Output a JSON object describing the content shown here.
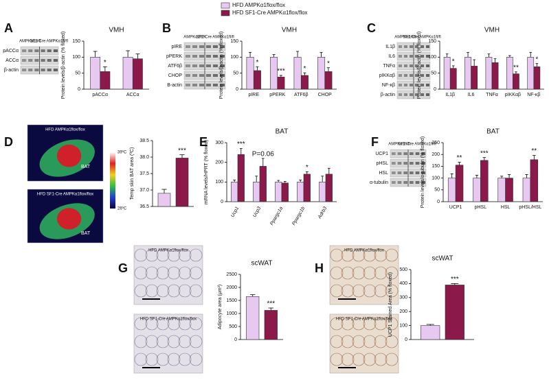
{
  "legend": [
    {
      "name": "HFD AMPKα1flox/flox",
      "color": "#e6c8f0"
    },
    {
      "name": "HFD SF1-Cre AMPKα1flox/flox",
      "color": "#8b1a4a"
    }
  ],
  "panels": [
    {
      "letter": "A",
      "blot": {
        "header": [
          "AMPKα1fl/fl",
          "SF1-Cre AMPKα1fl/fl"
        ],
        "rows": [
          "pACCα",
          "ACCα",
          "β-actin"
        ]
      }
    },
    {
      "letter": "B",
      "blot": {
        "header": [
          "AMPKα1fl/fl",
          "SF1-Cre AMPKα1fl/fl"
        ],
        "rows": [
          "pIRE",
          "pPERK",
          "ATF6β",
          "CHOP",
          "B-actin"
        ]
      }
    },
    {
      "letter": "C",
      "blot": {
        "header": [
          "AMPKα1fl/fl",
          "SF1-Cre AMPKα1fl/fl"
        ],
        "rows": [
          "IL1β",
          "IL6",
          "TNFα",
          "pIKKαβ",
          "NF-κβ",
          "β-actin"
        ]
      }
    },
    {
      "letter": "D",
      "images": [
        "HFD AMPKα1flox/flox",
        "HFD SF1-Cre AMPKα1flox/flox"
      ],
      "marks": [
        "BAT",
        "BAT"
      ],
      "scale": [
        "39ºC",
        "26ºC"
      ]
    },
    {
      "letter": "E"
    },
    {
      "letter": "F",
      "blot": {
        "header": [
          "AMPKα1fl/fl",
          "SF1-Cre AMPKα1fl/fl"
        ],
        "rows": [
          "UCP1",
          "pHSL",
          "HSL",
          "α-tubulin"
        ]
      }
    },
    {
      "letter": "G",
      "images": [
        "HFD AMPKα1flox/flox",
        "HFD SF1-Cre AMPKα1flox/flox"
      ]
    },
    {
      "letter": "H",
      "images": [
        "HFD AMPKα1flox/flox",
        "HFD SF1-Cre AMPKα1flox/flox"
      ]
    }
  ],
  "chart_data": [
    {
      "type": "bar",
      "title": "VMH",
      "ylabel": "Protein levels/β-actin (% floxed)",
      "categories": [
        "pACCα",
        "ACCα"
      ],
      "ylim": [
        0,
        150
      ],
      "yticks": [
        0,
        50,
        100,
        150
      ],
      "series": [
        {
          "color": "#e6c8f0",
          "values": [
            100,
            100
          ],
          "errors": [
            18,
            20
          ]
        },
        {
          "color": "#8b1a4a",
          "values": [
            55,
            95
          ],
          "errors": [
            15,
            15
          ]
        }
      ],
      "annotations": [
        "*",
        null
      ]
    },
    {
      "type": "bar",
      "title": "VMH",
      "ylabel": "Protein levels/β-actin (% floxed)",
      "categories": [
        "pIRE",
        "pPERK",
        "ATF6β",
        "CHOP"
      ],
      "ylim": [
        0,
        150
      ],
      "yticks": [
        0,
        50,
        100,
        150
      ],
      "series": [
        {
          "color": "#e6c8f0",
          "values": [
            100,
            100,
            100,
            100
          ],
          "errors": [
            15,
            8,
            18,
            15
          ]
        },
        {
          "color": "#8b1a4a",
          "values": [
            58,
            38,
            43,
            55
          ],
          "errors": [
            12,
            5,
            8,
            12
          ]
        }
      ],
      "annotations": [
        "*",
        "***",
        "*",
        "*"
      ]
    },
    {
      "type": "bar",
      "title": "VMH",
      "ylabel": "Protein levels/β-actin (% floxed)",
      "categories": [
        "IL1β",
        "IL6",
        "TNFα",
        "pIKKαβ",
        "NF-κβ"
      ],
      "ylim": [
        0,
        150
      ],
      "yticks": [
        0,
        50,
        100,
        150
      ],
      "series": [
        {
          "color": "#e6c8f0",
          "values": [
            100,
            100,
            100,
            100,
            100
          ],
          "errors": [
            10,
            15,
            10,
            5,
            15
          ]
        },
        {
          "color": "#8b1a4a",
          "values": [
            65,
            72,
            83,
            48,
            70
          ],
          "errors": [
            8,
            20,
            12,
            6,
            10
          ]
        }
      ],
      "annotations": [
        "*",
        null,
        null,
        "**",
        "*"
      ]
    },
    {
      "type": "bar",
      "ylabel": "Temp skin BAT area (ºC)",
      "categories": [
        null
      ],
      "ylim": [
        36.5,
        38.5
      ],
      "yticks": [
        36.5,
        {
          "value": 37,
          "label": "37.0"
        },
        37.5,
        {
          "value": 38,
          "label": "38.0"
        },
        38.5
      ],
      "series": [
        {
          "color": "#e6c8f0",
          "values": [
            36.9
          ],
          "errors": [
            0.12
          ]
        },
        {
          "color": "#8b1a4a",
          "values": [
            37.97
          ],
          "errors": [
            0.1
          ]
        }
      ],
      "annotations": [
        "***"
      ]
    },
    {
      "type": "bar",
      "title": "BAT",
      "ylabel": "mRNA levels/HPRT (% floxed)",
      "categories": [
        "Ucp1",
        "Ucp3",
        "Ppargc1a",
        "Ppargc1b",
        "Adrb3"
      ],
      "category_italic": true,
      "ylim": [
        0,
        300
      ],
      "yticks": [
        0,
        100,
        200,
        300
      ],
      "series": [
        {
          "color": "#e6c8f0",
          "values": [
            100,
            100,
            100,
            100,
            100
          ],
          "errors": [
            10,
            30,
            8,
            10,
            30
          ]
        },
        {
          "color": "#8b1a4a",
          "values": [
            240,
            180,
            95,
            140,
            140
          ],
          "errors": [
            30,
            40,
            8,
            12,
            30
          ]
        }
      ],
      "annotations": [
        "***",
        "P=0.06",
        null,
        "*",
        null
      ]
    },
    {
      "type": "bar",
      "title": "BAT",
      "ylabel": "Protein levels/α-tubulin (% floxed)",
      "categories": [
        "UCP1",
        "pHSL",
        "HSL",
        "pHSL/HSL"
      ],
      "ylim": [
        0,
        250
      ],
      "yticks": [
        0,
        50,
        100,
        150,
        200,
        250
      ],
      "series": [
        {
          "color": "#e6c8f0",
          "values": [
            100,
            100,
            100,
            100
          ],
          "errors": [
            18,
            12,
            8,
            15
          ]
        },
        {
          "color": "#8b1a4a",
          "values": [
            155,
            175,
            100,
            178
          ],
          "errors": [
            12,
            12,
            15,
            18
          ]
        }
      ],
      "annotations": [
        "**",
        "***",
        null,
        "**"
      ]
    },
    {
      "type": "bar",
      "title": "scWAT",
      "ylabel": "Adipocyte area (μm²)",
      "categories": [
        null
      ],
      "ylim": [
        0,
        2500
      ],
      "yticks": [
        0,
        500,
        1000,
        1500,
        2000,
        2500
      ],
      "series": [
        {
          "color": "#e6c8f0",
          "values": [
            1650
          ],
          "errors": [
            70
          ]
        },
        {
          "color": "#8b1a4a",
          "values": [
            1120
          ],
          "errors": [
            90
          ]
        }
      ],
      "annotations": [
        "***"
      ]
    },
    {
      "type": "bar",
      "title": "scWAT",
      "ylabel": "UCP1 Stained Area (% floxed)",
      "categories": [
        null
      ],
      "ylim": [
        0,
        500
      ],
      "yticks": [
        0,
        100,
        200,
        300,
        400,
        500
      ],
      "series": [
        {
          "color": "#e6c8f0",
          "values": [
            100
          ],
          "errors": [
            8
          ]
        },
        {
          "color": "#8b1a4a",
          "values": [
            390
          ],
          "errors": [
            10
          ]
        }
      ],
      "annotations": [
        "***"
      ]
    }
  ]
}
